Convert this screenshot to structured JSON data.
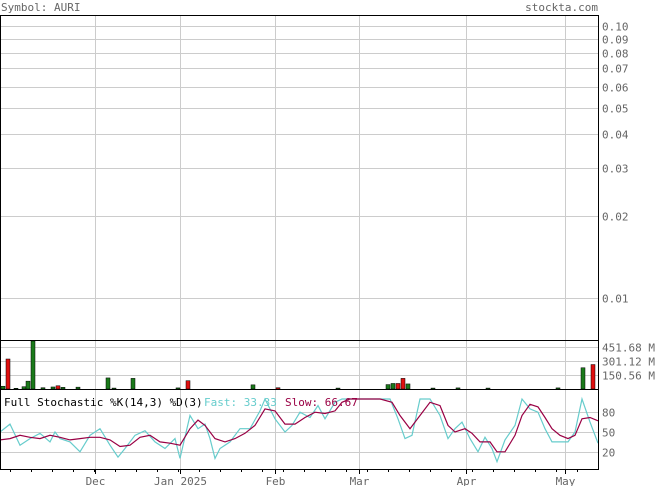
{
  "header": {
    "symbol_label": "Symbol: AURI",
    "site": "stockta.com"
  },
  "colors": {
    "up": "#1a7a1a",
    "down": "#e01010",
    "fast": "#66cccc",
    "slow": "#990044",
    "grid": "#cccccc",
    "text": "#666666"
  },
  "chart_data": [
    {
      "type": "line",
      "panel": "price",
      "title": "",
      "y_scale": "log",
      "ylim": [
        0.007,
        0.11
      ],
      "y_ticks": [
        "0.10",
        "0.09",
        "0.08",
        "0.07",
        "0.06",
        "0.05",
        "0.04",
        "0.03",
        "0.02",
        "0.01"
      ],
      "x_ticks": [
        "Dec",
        "Jan 2025",
        "Feb",
        "Mar",
        "Apr",
        "May"
      ],
      "series": []
    },
    {
      "type": "bar",
      "panel": "volume",
      "y_ticks": [
        "451.68 M",
        "301.12 M",
        "150.56 M"
      ],
      "ylim": [
        0,
        520
      ],
      "bars": [
        {
          "x": 3,
          "v": 30,
          "up": true
        },
        {
          "x": 8,
          "v": 325,
          "up": false
        },
        {
          "x": 16,
          "v": 8,
          "up": true
        },
        {
          "x": 24,
          "v": 25,
          "up": true
        },
        {
          "x": 28,
          "v": 85,
          "up": true
        },
        {
          "x": 33,
          "v": 520,
          "up": true
        },
        {
          "x": 43,
          "v": 14,
          "up": true
        },
        {
          "x": 53,
          "v": 22,
          "up": true
        },
        {
          "x": 58,
          "v": 35,
          "up": false
        },
        {
          "x": 63,
          "v": 18,
          "up": true
        },
        {
          "x": 78,
          "v": 20,
          "up": true
        },
        {
          "x": 108,
          "v": 120,
          "up": true
        },
        {
          "x": 114,
          "v": 10,
          "up": true
        },
        {
          "x": 133,
          "v": 115,
          "up": true
        },
        {
          "x": 178,
          "v": 12,
          "up": true
        },
        {
          "x": 188,
          "v": 90,
          "up": false
        },
        {
          "x": 253,
          "v": 45,
          "up": true
        },
        {
          "x": 278,
          "v": 14,
          "up": false
        },
        {
          "x": 338,
          "v": 10,
          "up": true
        },
        {
          "x": 388,
          "v": 48,
          "up": true
        },
        {
          "x": 393,
          "v": 60,
          "up": true
        },
        {
          "x": 398,
          "v": 60,
          "up": false
        },
        {
          "x": 403,
          "v": 115,
          "up": false
        },
        {
          "x": 408,
          "v": 55,
          "up": true
        },
        {
          "x": 433,
          "v": 10,
          "up": true
        },
        {
          "x": 458,
          "v": 12,
          "up": true
        },
        {
          "x": 488,
          "v": 10,
          "up": true
        },
        {
          "x": 558,
          "v": 12,
          "up": true
        },
        {
          "x": 583,
          "v": 230,
          "up": true
        },
        {
          "x": 593,
          "v": 265,
          "up": false
        }
      ]
    },
    {
      "type": "line",
      "panel": "stochastic",
      "title": "Full Stochastic %K(14,3) %D(3)",
      "fast_label": "Fast: 33.33",
      "slow_label": "Slow: 66.67",
      "ylim": [
        0,
        100
      ],
      "y_ticks": [
        "80",
        "50",
        "20"
      ],
      "fast": [
        [
          0,
          50
        ],
        [
          10,
          62
        ],
        [
          20,
          30
        ],
        [
          30,
          40
        ],
        [
          40,
          48
        ],
        [
          50,
          35
        ],
        [
          55,
          50
        ],
        [
          60,
          40
        ],
        [
          70,
          35
        ],
        [
          80,
          20
        ],
        [
          90,
          45
        ],
        [
          100,
          55
        ],
        [
          110,
          30
        ],
        [
          118,
          12
        ],
        [
          125,
          25
        ],
        [
          135,
          45
        ],
        [
          145,
          52
        ],
        [
          155,
          35
        ],
        [
          165,
          25
        ],
        [
          175,
          40
        ],
        [
          180,
          10
        ],
        [
          190,
          75
        ],
        [
          198,
          55
        ],
        [
          205,
          62
        ],
        [
          210,
          40
        ],
        [
          215,
          10
        ],
        [
          220,
          25
        ],
        [
          230,
          35
        ],
        [
          240,
          55
        ],
        [
          250,
          55
        ],
        [
          260,
          82
        ],
        [
          265,
          100
        ],
        [
          275,
          70
        ],
        [
          285,
          50
        ],
        [
          292,
          60
        ],
        [
          300,
          80
        ],
        [
          310,
          72
        ],
        [
          318,
          90
        ],
        [
          325,
          70
        ],
        [
          335,
          95
        ],
        [
          342,
          100
        ],
        [
          350,
          100
        ],
        [
          360,
          100
        ],
        [
          380,
          100
        ],
        [
          390,
          100
        ],
        [
          398,
          70
        ],
        [
          405,
          40
        ],
        [
          412,
          45
        ],
        [
          420,
          100
        ],
        [
          430,
          100
        ],
        [
          440,
          75
        ],
        [
          448,
          40
        ],
        [
          455,
          55
        ],
        [
          462,
          65
        ],
        [
          470,
          40
        ],
        [
          478,
          20
        ],
        [
          485,
          42
        ],
        [
          492,
          25
        ],
        [
          497,
          5
        ],
        [
          505,
          38
        ],
        [
          515,
          60
        ],
        [
          522,
          100
        ],
        [
          530,
          85
        ],
        [
          538,
          80
        ],
        [
          545,
          55
        ],
        [
          552,
          35
        ],
        [
          560,
          35
        ],
        [
          568,
          35
        ],
        [
          575,
          50
        ],
        [
          582,
          100
        ],
        [
          590,
          65
        ],
        [
          598,
          33
        ]
      ],
      "slow": [
        [
          0,
          38
        ],
        [
          10,
          40
        ],
        [
          20,
          45
        ],
        [
          30,
          42
        ],
        [
          40,
          40
        ],
        [
          50,
          45
        ],
        [
          60,
          42
        ],
        [
          70,
          38
        ],
        [
          80,
          40
        ],
        [
          90,
          42
        ],
        [
          100,
          42
        ],
        [
          110,
          38
        ],
        [
          120,
          28
        ],
        [
          130,
          30
        ],
        [
          140,
          42
        ],
        [
          150,
          45
        ],
        [
          160,
          35
        ],
        [
          170,
          33
        ],
        [
          180,
          30
        ],
        [
          190,
          55
        ],
        [
          198,
          68
        ],
        [
          205,
          60
        ],
        [
          215,
          40
        ],
        [
          225,
          35
        ],
        [
          235,
          40
        ],
        [
          245,
          48
        ],
        [
          255,
          60
        ],
        [
          265,
          85
        ],
        [
          275,
          82
        ],
        [
          285,
          62
        ],
        [
          295,
          62
        ],
        [
          305,
          72
        ],
        [
          315,
          80
        ],
        [
          325,
          78
        ],
        [
          335,
          82
        ],
        [
          342,
          95
        ],
        [
          350,
          100
        ],
        [
          380,
          100
        ],
        [
          392,
          95
        ],
        [
          400,
          75
        ],
        [
          410,
          55
        ],
        [
          420,
          75
        ],
        [
          430,
          95
        ],
        [
          440,
          90
        ],
        [
          448,
          60
        ],
        [
          455,
          50
        ],
        [
          465,
          55
        ],
        [
          472,
          48
        ],
        [
          480,
          35
        ],
        [
          490,
          35
        ],
        [
          497,
          20
        ],
        [
          505,
          20
        ],
        [
          515,
          45
        ],
        [
          522,
          75
        ],
        [
          530,
          92
        ],
        [
          538,
          88
        ],
        [
          545,
          72
        ],
        [
          552,
          55
        ],
        [
          560,
          45
        ],
        [
          568,
          40
        ],
        [
          575,
          45
        ],
        [
          582,
          70
        ],
        [
          590,
          72
        ],
        [
          598,
          67
        ]
      ]
    }
  ]
}
